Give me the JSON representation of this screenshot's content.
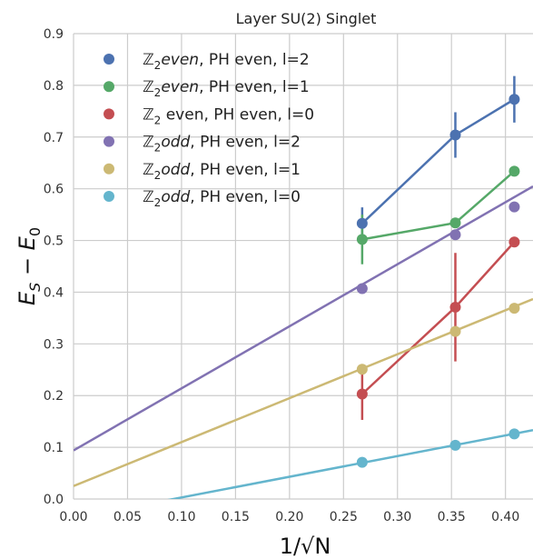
{
  "chart_data": {
    "type": "scatter",
    "title": "Layer SU(2) Singlet",
    "xlabel": "1/√N",
    "ylabel_main": "E",
    "ylabel_sub1": "S",
    "ylabel_mid": " − E",
    "ylabel_sub2": "0",
    "xlim": [
      0.0,
      0.4255
    ],
    "ylim": [
      0.0,
      0.9
    ],
    "xticks": [
      0.0,
      0.05,
      0.1,
      0.15,
      0.2,
      0.25,
      0.3,
      0.35,
      0.4
    ],
    "xtick_labels": [
      "0.00",
      "0.05",
      "0.10",
      "0.15",
      "0.20",
      "0.25",
      "0.30",
      "0.35",
      "0.40"
    ],
    "yticks": [
      0.0,
      0.1,
      0.2,
      0.3,
      0.4,
      0.5,
      0.6,
      0.7,
      0.8,
      0.9
    ],
    "ytick_labels": [
      "0.0",
      "0.1",
      "0.2",
      "0.3",
      "0.4",
      "0.5",
      "0.6",
      "0.7",
      "0.8",
      "0.9"
    ],
    "grid": true,
    "legend_position": "top-left",
    "series": [
      {
        "legend_z": "ℤ",
        "legend_sub": "2",
        "legend_parity": "even",
        "legend_italic": true,
        "legend_rest": ", PH even, l=2",
        "color": "#4c72b0",
        "x": [
          0.2673,
          0.3536,
          0.4082
        ],
        "y": [
          0.533,
          0.704,
          0.773
        ],
        "yerr": [
          0.031,
          0.044,
          0.045
        ],
        "fit": "connect"
      },
      {
        "legend_z": "ℤ",
        "legend_sub": "2",
        "legend_parity": "even",
        "legend_italic": true,
        "legend_rest": ", PH even, l=1",
        "color": "#55a868",
        "x": [
          0.2673,
          0.3536,
          0.4082
        ],
        "y": [
          0.502,
          0.534,
          0.634
        ],
        "yerr": [
          0.048,
          0.0,
          0.0
        ],
        "fit": "connect"
      },
      {
        "legend_z": "ℤ",
        "legend_sub": "2",
        "legend_parity": " even",
        "legend_italic": false,
        "legend_rest": ", PH even, l=0",
        "color": "#c44e52",
        "x": [
          0.2673,
          0.3536,
          0.4082
        ],
        "y": [
          0.203,
          0.371,
          0.497
        ],
        "yerr": [
          0.05,
          0.105,
          0.0
        ],
        "fit": "connect"
      },
      {
        "legend_z": "ℤ",
        "legend_sub": "2",
        "legend_parity": "odd",
        "legend_italic": true,
        "legend_rest": ", PH even, l=2",
        "color": "#8172b2",
        "x": [
          0.2673,
          0.3536,
          0.4082
        ],
        "y": [
          0.407,
          0.511,
          0.565
        ],
        "yerr": [
          0.0,
          0.0,
          0.0
        ],
        "fit": "linear",
        "fit_line": {
          "intercept": 0.094,
          "slope": 1.2
        }
      },
      {
        "legend_z": "ℤ",
        "legend_sub": "2",
        "legend_parity": "odd",
        "legend_italic": true,
        "legend_rest": ", PH even, l=1",
        "color": "#ccb974",
        "x": [
          0.2673,
          0.3536,
          0.4082
        ],
        "y": [
          0.251,
          0.324,
          0.369
        ],
        "yerr": [
          0.0,
          0.0,
          0.0
        ],
        "fit": "linear",
        "fit_line": {
          "intercept": 0.025,
          "slope": 0.85
        }
      },
      {
        "legend_z": "ℤ",
        "legend_sub": "2",
        "legend_parity": "odd",
        "legend_italic": true,
        "legend_rest": ", PH even, l=0",
        "color": "#64b5cd",
        "x": [
          0.2673,
          0.3536,
          0.4082
        ],
        "y": [
          0.071,
          0.104,
          0.126
        ],
        "yerr": [
          0.0,
          0.0,
          0.0
        ],
        "fit": "linear",
        "fit_line": {
          "intercept": -0.037,
          "slope": 0.4
        }
      }
    ]
  }
}
